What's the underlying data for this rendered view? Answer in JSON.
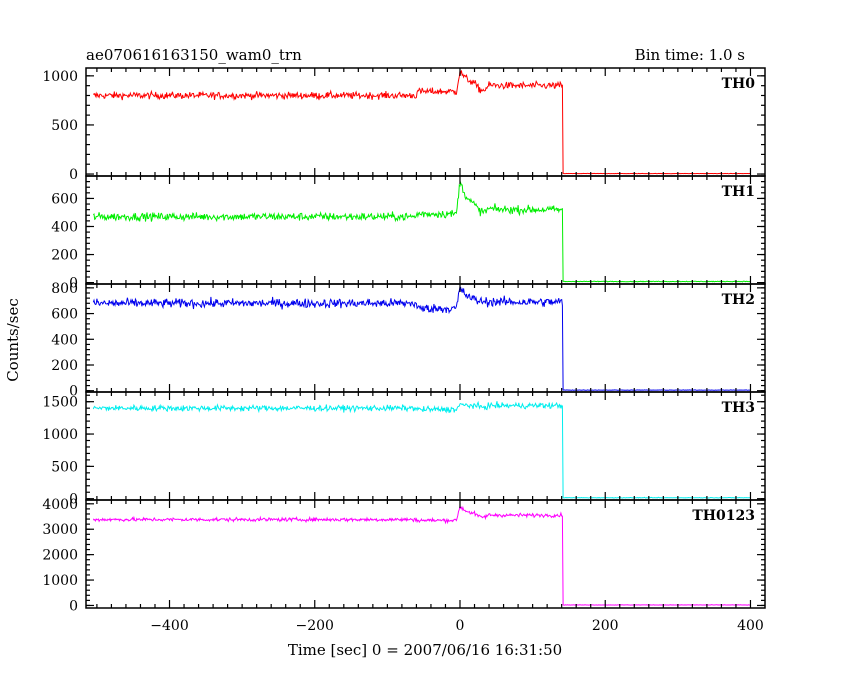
{
  "header": {
    "title": "ae070616163150_wam0_trn",
    "bin_time": "Bin time: 1.0 s"
  },
  "axes": {
    "xlabel": "Time [sec] 0 = 2007/06/16 16:31:50",
    "ylabel": "Counts/sec"
  },
  "chart_data": {
    "type": "line",
    "title": "ae070616163150_wam0_trn",
    "subtitle": "Bin time: 1.0 s",
    "xlabel": "Time [sec] 0 = 2007/06/16 16:31:50",
    "ylabel": "Counts/sec",
    "xlim": [
      -515,
      420
    ],
    "xticks": [
      -400,
      -200,
      0,
      200,
      400
    ],
    "x_range_data": [
      -505,
      400
    ],
    "cutoff_time": 141,
    "grid": false,
    "panels": [
      {
        "name": "TH0",
        "color": "#ff0000",
        "ylim": [
          -20,
          1080
        ],
        "yticks": [
          0,
          500,
          1000
        ],
        "baseline": 800,
        "noise": 35,
        "pre_peak": 840,
        "peak": 1050,
        "post_level": 900,
        "after_cutoff": 5
      },
      {
        "name": "TH1",
        "color": "#00ee00",
        "ylim": [
          -10,
          760
        ],
        "yticks": [
          0,
          200,
          400,
          600
        ],
        "baseline": 470,
        "noise": 28,
        "pre_peak": 490,
        "peak": 720,
        "post_level": 520,
        "after_cutoff": 8
      },
      {
        "name": "TH2",
        "color": "#0000ee",
        "ylim": [
          -10,
          830
        ],
        "yticks": [
          0,
          200,
          400,
          600,
          800
        ],
        "baseline": 680,
        "noise": 35,
        "pre_peak": 640,
        "peak": 800,
        "post_level": 690,
        "after_cutoff": 5
      },
      {
        "name": "TH3",
        "color": "#00eeee",
        "ylim": [
          -20,
          1650
        ],
        "yticks": [
          0,
          500,
          1000,
          1500
        ],
        "baseline": 1400,
        "noise": 45,
        "pre_peak": 1380,
        "peak": 1450,
        "post_level": 1440,
        "after_cutoff": 15
      },
      {
        "name": "TH0123",
        "color": "#ff00ff",
        "ylim": [
          -100,
          4150
        ],
        "yticks": [
          0,
          1000,
          2000,
          3000,
          4000
        ],
        "baseline": 3380,
        "noise": 70,
        "pre_peak": 3350,
        "peak": 3900,
        "post_level": 3550,
        "after_cutoff": 20
      }
    ]
  }
}
